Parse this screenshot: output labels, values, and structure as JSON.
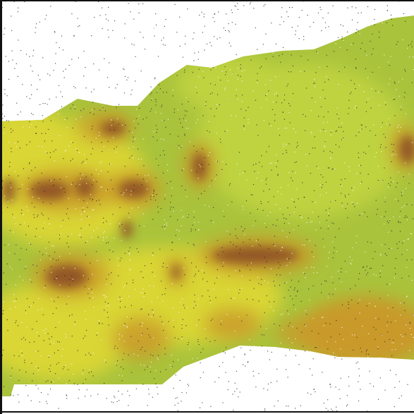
{
  "image": {
    "subject": "leaf-section-with-lesions",
    "colors": {
      "background": "#ffffff",
      "leaf_base": "#a9c33c",
      "leaf_light": "#bfd33f",
      "leaf_yellow": "#d9d634",
      "lesion_halo": "#c99a2b",
      "lesion_core": "#8a4a24",
      "frame": "#111111",
      "noise": "#2a2a2a"
    }
  }
}
